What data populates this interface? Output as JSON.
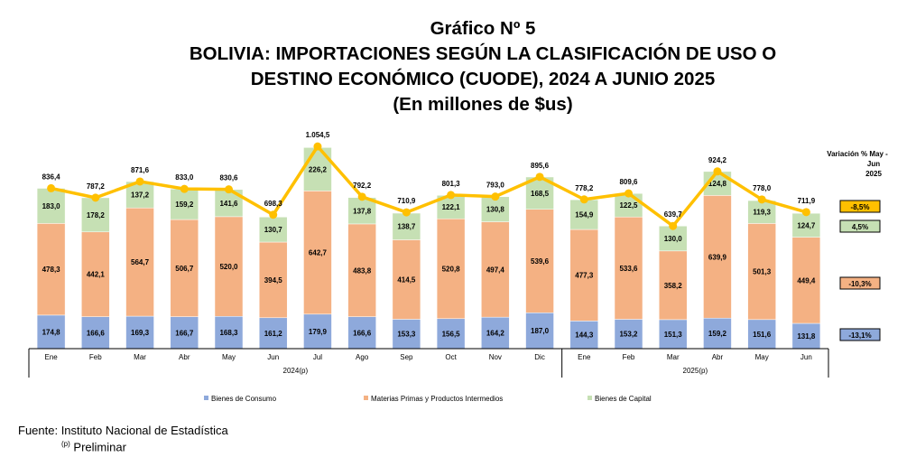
{
  "header": {
    "number": "Gráfico Nº 5",
    "title_line1": "BOLIVIA: IMPORTACIONES SEGÚN LA CLASIFICACIÓN DE USO O",
    "title_line2": "DESTINO ECONÓMICO (CUODE), 2024 A JUNIO 2025",
    "unit": "(En millones de $us)"
  },
  "chart_data": {
    "type": "bar",
    "stacked": true,
    "categories": [
      "Ene",
      "Feb",
      "Mar",
      "Abr",
      "May",
      "Jun",
      "Jul",
      "Ago",
      "Sep",
      "Oct",
      "Nov",
      "Dic",
      "Ene",
      "Feb",
      "Mar",
      "Abr",
      "May",
      "Jun"
    ],
    "groups": [
      {
        "label": "2024(p)",
        "start": 0,
        "end": 11
      },
      {
        "label": "2025(p)",
        "start": 12,
        "end": 17
      }
    ],
    "series": [
      {
        "name": "Bienes de Consumo",
        "color": "#8EA9DB",
        "values": [
          174.8,
          166.6,
          169.3,
          166.7,
          168.3,
          161.2,
          179.9,
          166.6,
          153.3,
          156.5,
          164.2,
          187.0,
          144.3,
          153.2,
          151.3,
          159.2,
          151.6,
          131.8
        ],
        "labels": [
          "174,8",
          "166,6",
          "169,3",
          "166,7",
          "168,3",
          "161,2",
          "179,9",
          "166,6",
          "153,3",
          "156,5",
          "164,2",
          "187,0",
          "144,3",
          "153,2",
          "151,3",
          "159,2",
          "151,6",
          "131,8"
        ]
      },
      {
        "name": "Materias Primas y Productos Intermedios",
        "color": "#F4B183",
        "values": [
          478.3,
          442.1,
          564.7,
          506.7,
          520.0,
          394.5,
          642.7,
          483.8,
          414.5,
          520.8,
          497.4,
          539.6,
          477.3,
          533.6,
          358.2,
          639.9,
          501.3,
          449.4
        ],
        "labels": [
          "478,3",
          "442,1",
          "564,7",
          "506,7",
          "520,0",
          "394,5",
          "642,7",
          "483,8",
          "414,5",
          "520,8",
          "497,4",
          "539,6",
          "477,3",
          "533,6",
          "358,2",
          "639,9",
          "501,3",
          "449,4"
        ]
      },
      {
        "name": "Bienes de Capital",
        "color": "#C6E0B4",
        "values": [
          183.0,
          178.2,
          137.2,
          159.2,
          141.6,
          130.7,
          226.2,
          137.8,
          138.7,
          122.1,
          130.8,
          168.5,
          154.9,
          122.5,
          130.0,
          124.8,
          119.3,
          124.7
        ],
        "labels": [
          "183,0",
          "178,2",
          "137,2",
          "159,2",
          "141,6",
          "130,7",
          "226,2",
          "137,8",
          "138,7",
          "122,1",
          "130,8",
          "168,5",
          "154,9",
          "122,5",
          "130,0",
          "124,8",
          "119,3",
          "124,7"
        ]
      }
    ],
    "total": {
      "color": "#FFC000",
      "values": [
        836.4,
        787.2,
        871.6,
        833.0,
        830.6,
        698.3,
        1054.5,
        792.2,
        710.9,
        801.3,
        793.0,
        895.6,
        778.2,
        809.6,
        639.7,
        924.2,
        778.0,
        711.9
      ],
      "labels": [
        "836,4",
        "787,2",
        "871,6",
        "833,0",
        "830,6",
        "698,3",
        "1.054,5",
        "792,2",
        "710,9",
        "801,3",
        "793,0",
        "895,6",
        "778,2",
        "809,6",
        "639,7",
        "924,2",
        "778,0",
        "711,9"
      ]
    },
    "variation": {
      "title_line1": "Variación % May -",
      "title_line2": "Jun",
      "title_line3": "2025",
      "items": [
        {
          "label": "-8,5%",
          "value": -8.5,
          "color": "#FFC000"
        },
        {
          "label": "4,5%",
          "value": 4.5,
          "color": "#C6E0B4"
        },
        {
          "label": "-10,3%",
          "value": -10.3,
          "color": "#F4B183"
        },
        {
          "label": "-13,1%",
          "value": -13.1,
          "color": "#8EA9DB"
        }
      ]
    },
    "legend": [
      "Bienes de Consumo",
      "Materias Primas y Productos Intermedios",
      "Bienes de Capital"
    ],
    "legend_position": "bottom",
    "grid": false
  },
  "footer": {
    "source": "Fuente: Instituto Nacional de Estadística",
    "note_mark": "(p)",
    "note": " Preliminar"
  }
}
